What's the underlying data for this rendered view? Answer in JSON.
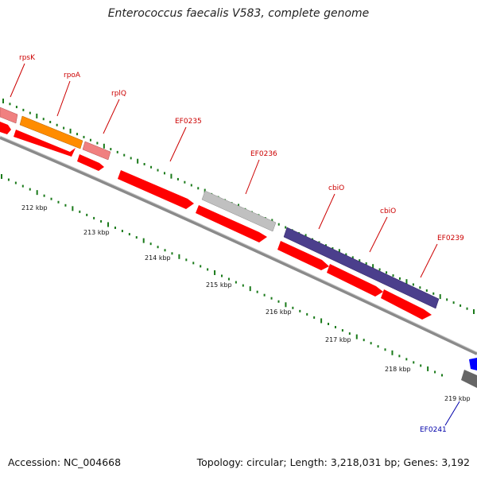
{
  "title": "Enterococcus faecalis V583, complete genome",
  "footer": {
    "accession": "Accession: NC_004668",
    "summary": "Topology: circular; Length: 3,218,031 bp; Genes: 3,192"
  },
  "colors": {
    "backbone": "#8a8a8a",
    "tick": "#1a7a1a",
    "cds": "#ff0000",
    "label_red": "#cc0000",
    "label_blue": "#0000aa",
    "rpsK": "#f08080",
    "rpoA": "#ff8c00",
    "rplQ": "#f08080",
    "EF0236": "#c0c0c0",
    "cbiO": "#4b3f8c",
    "EF0241_top": "#0000ff",
    "EF0241_bottom": "#666666"
  },
  "scale": {
    "labels": [
      "212 kbp",
      "213 kbp",
      "214 kbp",
      "215 kbp",
      "216 kbp",
      "217 kbp",
      "218 kbp",
      "219 kbp"
    ]
  },
  "genes": [
    {
      "name": "rpsK",
      "color": "red"
    },
    {
      "name": "rpoA",
      "color": "red"
    },
    {
      "name": "rplQ",
      "color": "red"
    },
    {
      "name": "EF0235",
      "color": "red"
    },
    {
      "name": "EF0236",
      "color": "red"
    },
    {
      "name": "cbiO",
      "color": "red"
    },
    {
      "name": "cbiO",
      "color": "red"
    },
    {
      "name": "EF0239",
      "color": "red"
    },
    {
      "name": "EF0241",
      "color": "blue"
    }
  ]
}
